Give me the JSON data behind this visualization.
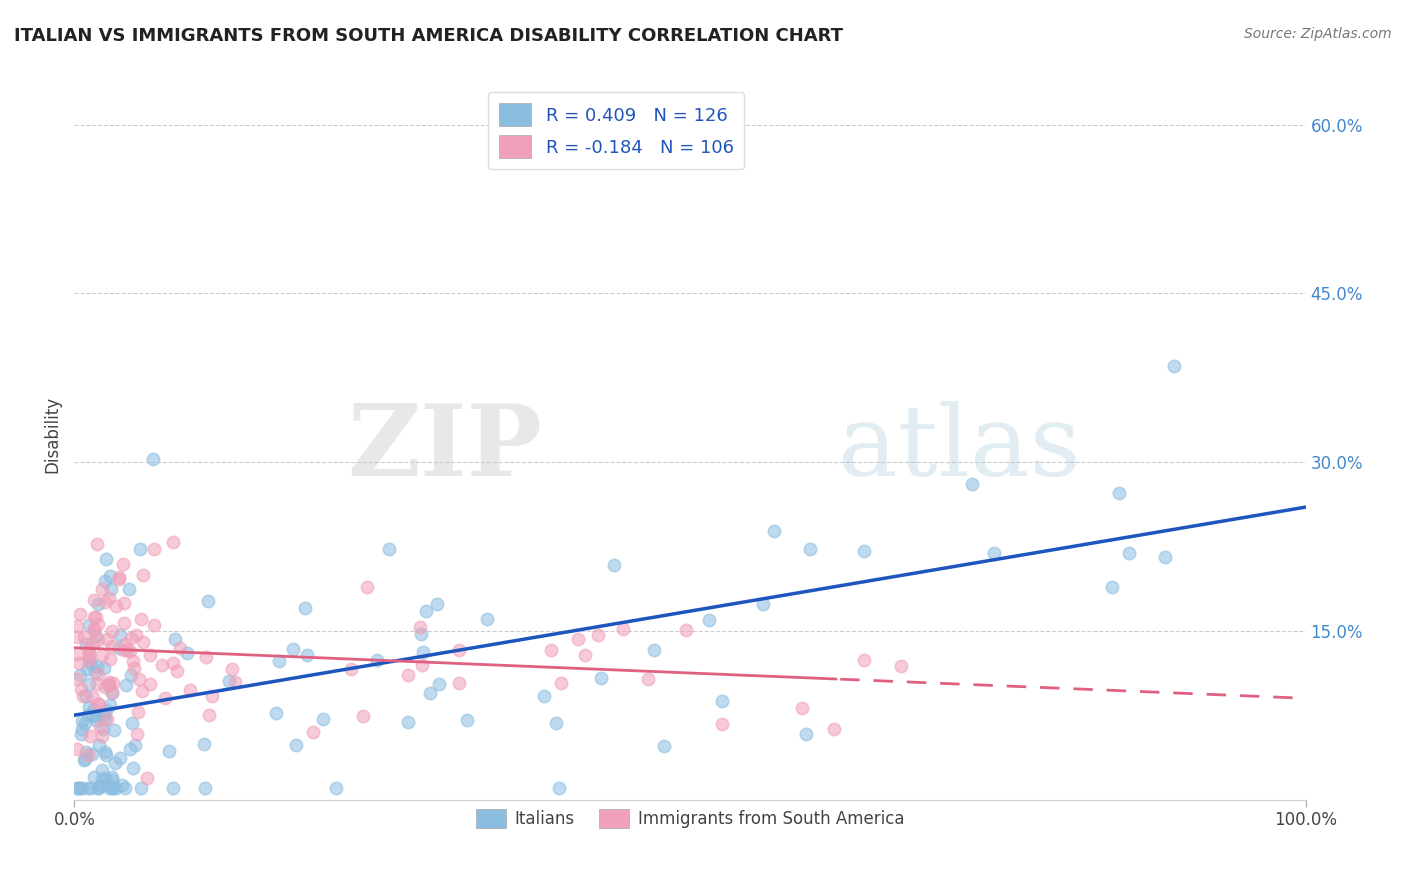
{
  "title": "ITALIAN VS IMMIGRANTS FROM SOUTH AMERICA DISABILITY CORRELATION CHART",
  "source_text": "Source: ZipAtlas.com",
  "ylabel": "Disability",
  "xlim": [
    0.0,
    1.0
  ],
  "ylim": [
    0.0,
    0.65
  ],
  "ytick_vals": [
    0.15,
    0.3,
    0.45,
    0.6
  ],
  "ytick_labels": [
    "15.0%",
    "30.0%",
    "45.0%",
    "60.0%"
  ],
  "xtick_vals": [
    0.0,
    1.0
  ],
  "xtick_labels": [
    "0.0%",
    "100.0%"
  ],
  "blue_color": "#8BBDE0",
  "pink_color": "#F0A0B8",
  "blue_line_color": "#1E56C0",
  "pink_line_color": "#E06080",
  "watermark_zip": "ZIP",
  "watermark_atlas": "atlas",
  "legend_label1": "R = 0.409   N = 126",
  "legend_label2": "R = -0.184   N = 106",
  "legend_label_italians": "Italians",
  "legend_label_immigrants": "Immigrants from South America",
  "N_blue": 126,
  "N_pink": 106,
  "blue_intercept": 0.075,
  "blue_slope": 0.185,
  "pink_intercept": 0.135,
  "pink_slope": -0.045,
  "seed_blue": 42,
  "seed_pink": 7
}
